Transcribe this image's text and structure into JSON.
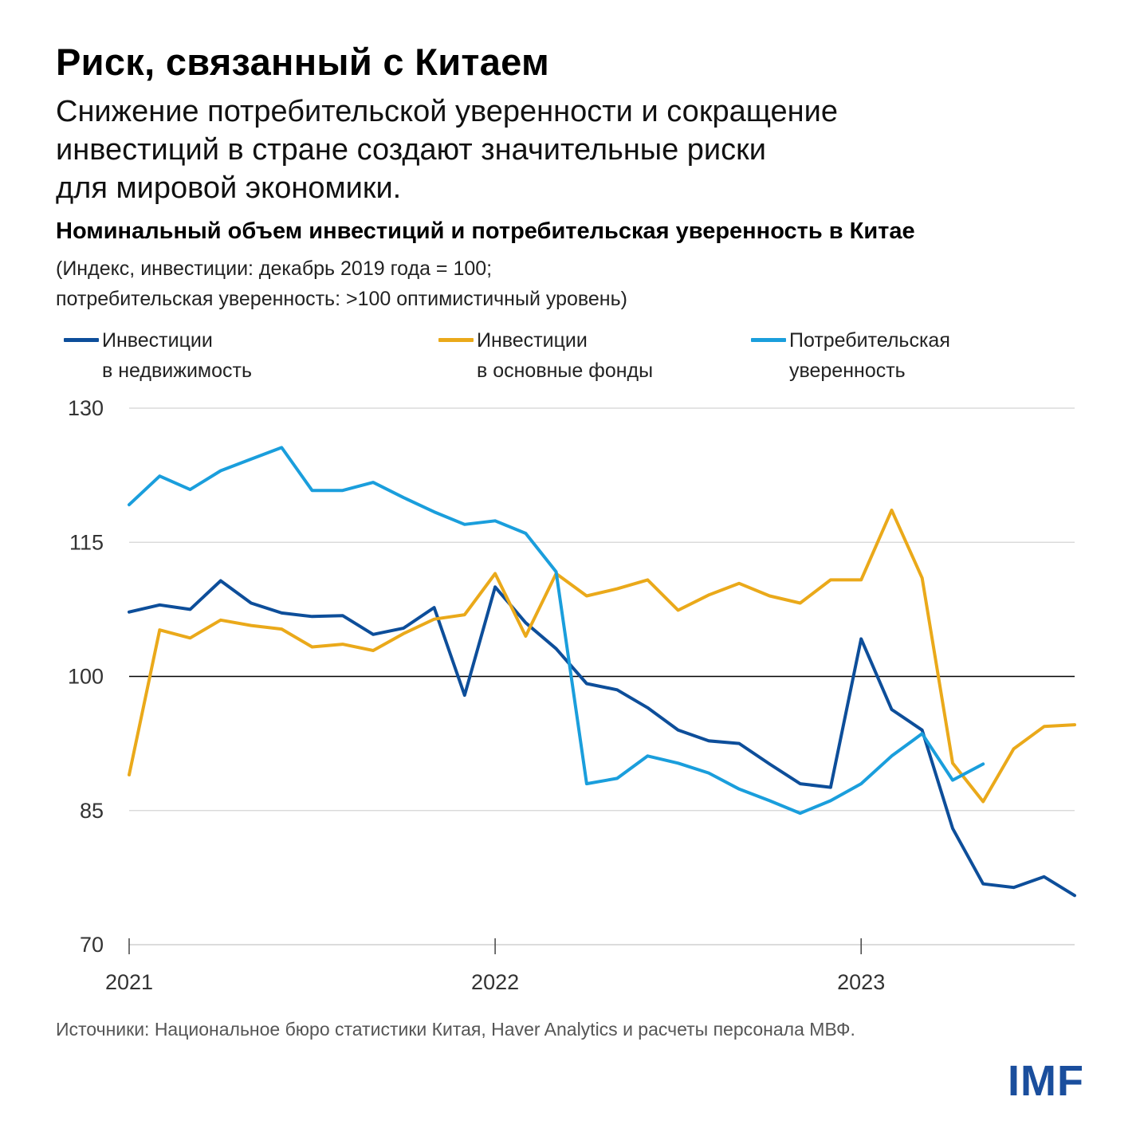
{
  "header": {
    "title": "Риск, связанный с Китаем",
    "subtitle_lines": [
      "Снижение потребительской уверенности и сокращение",
      "инвестиций в стране создают значительные риски",
      "для мировой экономики."
    ]
  },
  "chart_header": {
    "title": "Номинальный объем инвестиций и потребительская уверенность в Китае",
    "note_lines": [
      "(Индекс, инвестиции: декабрь 2019 года = 100;",
      "потребительская уверенность: >100 оптимистичный уровень)"
    ]
  },
  "legend": [
    {
      "label": "Инвестиции\nв недвижимость",
      "color": "#0d4e9a"
    },
    {
      "label": "Инвестиции\nв основные фонды",
      "color": "#eaa91a"
    },
    {
      "label": "Потребительская\nуверенность",
      "color": "#1a9edc"
    }
  ],
  "chart_data": {
    "type": "line",
    "title": "Номинальный объем инвестиций и потребительская уверенность в Китае",
    "xlabel": "",
    "ylabel": "",
    "x_unit": "month index (0 = Jan 2021)",
    "xlim": [
      0,
      31
    ],
    "ylim": [
      70,
      130
    ],
    "yticks": [
      70,
      85,
      100,
      115,
      130
    ],
    "reference_line": 100,
    "xticks": [
      {
        "x": 0,
        "label": "2021"
      },
      {
        "x": 12,
        "label": "2022"
      },
      {
        "x": 24,
        "label": "2023"
      }
    ],
    "series": [
      {
        "name": "Инвестиции в недвижимость",
        "color": "#0d4e9a",
        "x": [
          0,
          1,
          2,
          3,
          4,
          5,
          6,
          7,
          8,
          9,
          10,
          11,
          12,
          13,
          14,
          15,
          16,
          17,
          18,
          19,
          20,
          21,
          22,
          23,
          24,
          25,
          26,
          27,
          28,
          29,
          30,
          31
        ],
        "values": [
          107.2,
          108.0,
          107.5,
          110.7,
          108.2,
          107.1,
          106.7,
          106.8,
          104.7,
          105.4,
          107.7,
          97.9,
          110.0,
          106.0,
          103.1,
          99.2,
          98.5,
          96.5,
          94.0,
          92.8,
          92.5,
          90.2,
          88.0,
          87.6,
          104.2,
          96.3,
          94.0,
          83.0,
          76.8,
          76.4,
          77.6,
          75.5
        ]
      },
      {
        "name": "Инвестиции в основные фонды",
        "color": "#eaa91a",
        "x": [
          0,
          1,
          2,
          3,
          4,
          5,
          6,
          7,
          8,
          9,
          10,
          11,
          12,
          13,
          14,
          15,
          16,
          17,
          18,
          19,
          20,
          21,
          22,
          23,
          24,
          25,
          26,
          27,
          28,
          29,
          30,
          31
        ],
        "values": [
          89.0,
          105.2,
          104.3,
          106.3,
          105.7,
          105.3,
          103.3,
          103.6,
          102.9,
          104.8,
          106.4,
          106.9,
          111.5,
          104.5,
          111.5,
          109.0,
          109.8,
          110.8,
          107.4,
          109.1,
          110.4,
          109.0,
          108.2,
          110.8,
          110.8,
          118.6,
          111.0,
          90.3,
          86.0,
          91.9,
          94.4,
          94.6
        ]
      },
      {
        "name": "Потребительская уверенность",
        "color": "#1a9edc",
        "x": [
          0,
          1,
          2,
          3,
          4,
          5,
          6,
          7,
          8,
          9,
          10,
          11,
          12,
          13,
          14,
          15,
          16,
          17,
          18,
          19,
          20,
          21,
          22,
          23,
          24,
          25,
          26,
          27,
          28
        ],
        "values": [
          119.2,
          122.4,
          120.9,
          123.0,
          124.3,
          125.6,
          120.8,
          120.8,
          121.7,
          120.0,
          118.4,
          117.0,
          117.4,
          116.0,
          111.7,
          88.0,
          88.6,
          91.1,
          90.3,
          89.2,
          87.4,
          86.1,
          84.7,
          86.1,
          88.0,
          91.1,
          93.6,
          88.4,
          90.2
        ]
      }
    ]
  },
  "source": "Источники: Национальное бюро статистики Китая, Haver Analytics и расчеты персонала МВФ.",
  "logo": "IMF"
}
